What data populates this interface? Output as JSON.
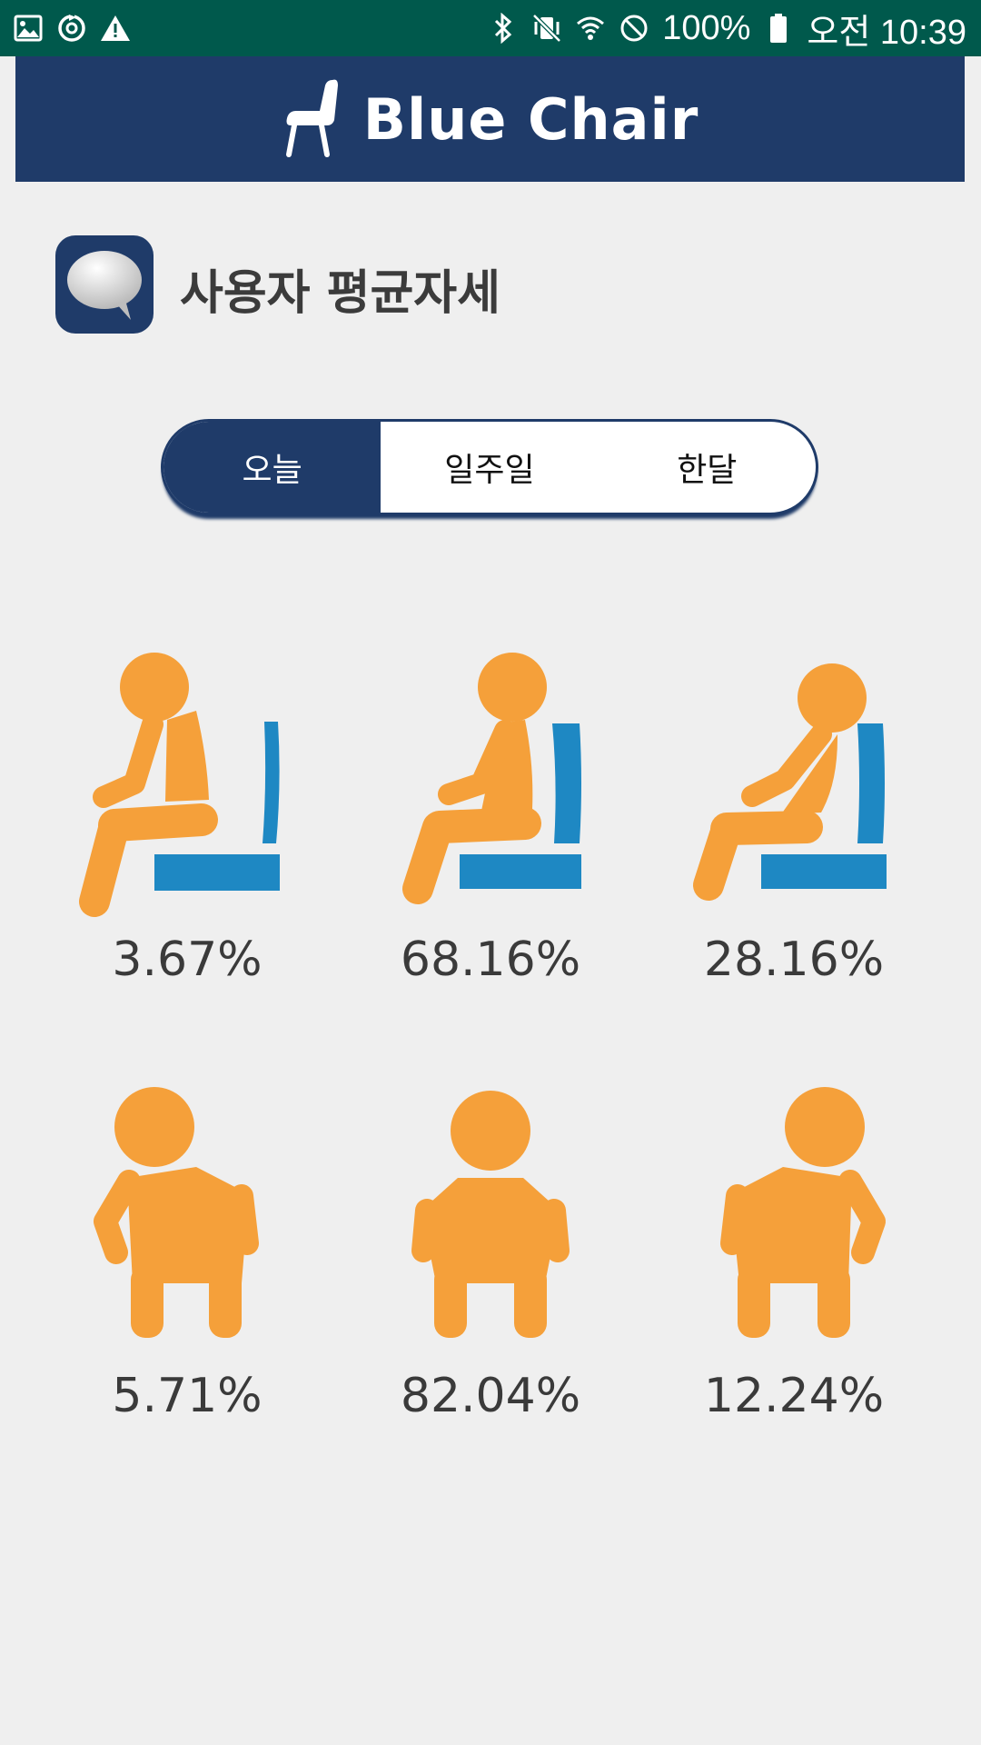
{
  "status_bar": {
    "battery": "100%",
    "time": "오전 10:39",
    "left_icons": [
      "gallery-icon",
      "sync-icon",
      "warning-icon"
    ],
    "right_icons": [
      "bluetooth-icon",
      "vibrate-mute-icon",
      "wifi-icon",
      "do-not-disturb-icon",
      "battery-icon"
    ]
  },
  "header": {
    "title": "Blue Chair",
    "icon": "chair-icon"
  },
  "section": {
    "title": "사용자 평균자세",
    "icon": "speech-bubble-icon"
  },
  "tabs": {
    "items": [
      "오늘",
      "일주일",
      "한달"
    ],
    "selected": "오늘"
  },
  "postures": {
    "side": [
      {
        "icon": "sitting-lean-forward-icon",
        "percent": "3.67%"
      },
      {
        "icon": "sitting-upright-icon",
        "percent": "68.16%"
      },
      {
        "icon": "sitting-recline-icon",
        "percent": "28.16%"
      }
    ],
    "front": [
      {
        "icon": "sitting-lean-left-icon",
        "percent": "5.71%"
      },
      {
        "icon": "sitting-center-icon",
        "percent": "82.04%"
      },
      {
        "icon": "sitting-lean-right-icon",
        "percent": "12.24%"
      }
    ]
  },
  "colors": {
    "status_bar": "#00594c",
    "brand_navy": "#1f3b69",
    "figure_orange": "#f5a03a",
    "seat_blue": "#1e88c3",
    "background": "#efefef"
  }
}
